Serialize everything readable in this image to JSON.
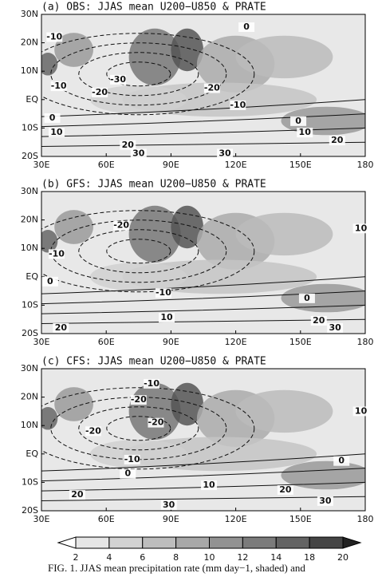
{
  "chart_data": [
    {
      "type": "contour",
      "title": "(a) OBS: JJAS mean U200−U850 & PRATE",
      "xlim": [
        30,
        180
      ],
      "ylim": [
        -20,
        30
      ],
      "xticks": [
        {
          "value": 30,
          "label": "30E"
        },
        {
          "value": 60,
          "label": "60E"
        },
        {
          "value": 90,
          "label": "90E"
        },
        {
          "value": 120,
          "label": "120E"
        },
        {
          "value": 150,
          "label": "150E"
        },
        {
          "value": 180,
          "label": "180"
        }
      ],
      "yticks": [
        {
          "value": -20,
          "label": "20S"
        },
        {
          "value": -10,
          "label": "10S"
        },
        {
          "value": 0,
          "label": "EQ"
        },
        {
          "value": 10,
          "label": "10N"
        },
        {
          "value": 20,
          "label": "20N"
        },
        {
          "value": 30,
          "label": "30N"
        }
      ],
      "contour_labels": [
        {
          "lon": 125,
          "lat": 25.5,
          "value": 0
        },
        {
          "lon": 36,
          "lat": 22,
          "value": -10
        },
        {
          "lon": 65.5,
          "lat": 7,
          "value": -30
        },
        {
          "lon": 57,
          "lat": 2.5,
          "value": -20
        },
        {
          "lon": 38,
          "lat": 4.7,
          "value": -10
        },
        {
          "lon": 109,
          "lat": 4,
          "value": -20
        },
        {
          "lon": 121,
          "lat": -2,
          "value": -10
        },
        {
          "lon": 35,
          "lat": -6.5,
          "value": 0
        },
        {
          "lon": 149,
          "lat": -7.6,
          "value": 0
        },
        {
          "lon": 37,
          "lat": -11.6,
          "value": 10
        },
        {
          "lon": 152,
          "lat": -11.6,
          "value": 10
        },
        {
          "lon": 70,
          "lat": -16,
          "value": 20
        },
        {
          "lon": 167,
          "lat": -14.4,
          "value": 20
        },
        {
          "lon": 75,
          "lat": -19,
          "value": 30
        },
        {
          "lon": 115,
          "lat": -19,
          "value": 30
        }
      ]
    },
    {
      "type": "contour",
      "title": "(b) GFS: JJAS mean U200−U850 & PRATE",
      "xlim": [
        30,
        180
      ],
      "ylim": [
        -20,
        30
      ],
      "xticks": [
        {
          "value": 30,
          "label": "30E"
        },
        {
          "value": 60,
          "label": "60E"
        },
        {
          "value": 90,
          "label": "90E"
        },
        {
          "value": 120,
          "label": "120E"
        },
        {
          "value": 150,
          "label": "150E"
        },
        {
          "value": 180,
          "label": "180"
        }
      ],
      "yticks": [
        {
          "value": -20,
          "label": "20S"
        },
        {
          "value": -10,
          "label": "10S"
        },
        {
          "value": 0,
          "label": "EQ"
        },
        {
          "value": 10,
          "label": "10N"
        },
        {
          "value": 20,
          "label": "20N"
        },
        {
          "value": 30,
          "label": "30N"
        }
      ],
      "contour_labels": [
        {
          "lon": 67,
          "lat": 18,
          "value": -20
        },
        {
          "lon": 37,
          "lat": 8,
          "value": -10
        },
        {
          "lon": 34,
          "lat": -1.7,
          "value": 0
        },
        {
          "lon": 86.5,
          "lat": -5.7,
          "value": -10
        },
        {
          "lon": 153,
          "lat": -7.6,
          "value": 0
        },
        {
          "lon": 88,
          "lat": -14.4,
          "value": 10
        },
        {
          "lon": 158.5,
          "lat": -15.5,
          "value": 20
        },
        {
          "lon": 39,
          "lat": -18,
          "value": 20
        },
        {
          "lon": 166,
          "lat": -18,
          "value": 30
        },
        {
          "lon": 178,
          "lat": 17,
          "value": 10
        }
      ]
    },
    {
      "type": "contour",
      "title": "(c) CFS: JJAS mean U200−U850 & PRATE",
      "xlim": [
        30,
        180
      ],
      "ylim": [
        -20,
        30
      ],
      "xticks": [
        {
          "value": 30,
          "label": "30E"
        },
        {
          "value": 60,
          "label": "60E"
        },
        {
          "value": 90,
          "label": "90E"
        },
        {
          "value": 120,
          "label": "120E"
        },
        {
          "value": 150,
          "label": "150E"
        },
        {
          "value": 180,
          "label": "180"
        }
      ],
      "yticks": [
        {
          "value": -20,
          "label": "20S"
        },
        {
          "value": -10,
          "label": "10S"
        },
        {
          "value": 0,
          "label": "EQ"
        },
        {
          "value": 10,
          "label": "10N"
        },
        {
          "value": 20,
          "label": "20N"
        },
        {
          "value": 30,
          "label": "30N"
        }
      ],
      "contour_labels": [
        {
          "lon": 81,
          "lat": 24.7,
          "value": -10
        },
        {
          "lon": 75,
          "lat": 19,
          "value": -20
        },
        {
          "lon": 83,
          "lat": 11,
          "value": -20
        },
        {
          "lon": 54,
          "lat": 8,
          "value": -20
        },
        {
          "lon": 72,
          "lat": -2,
          "value": -10
        },
        {
          "lon": 70,
          "lat": -7,
          "value": 0
        },
        {
          "lon": 169,
          "lat": -2.5,
          "value": 0
        },
        {
          "lon": 107.6,
          "lat": -11,
          "value": 10
        },
        {
          "lon": 46.6,
          "lat": -14.4,
          "value": 20
        },
        {
          "lon": 143,
          "lat": -12.7,
          "value": 20
        },
        {
          "lon": 161.5,
          "lat": -16.6,
          "value": 30
        },
        {
          "lon": 89,
          "lat": -18,
          "value": 30
        },
        {
          "lon": 178,
          "lat": 15,
          "value": 10
        }
      ]
    }
  ],
  "colorbar": {
    "levels": [
      2,
      4,
      6,
      8,
      10,
      12,
      14,
      18,
      20
    ],
    "colors": [
      "#ffffff",
      "#e6e6e6",
      "#d2d2d2",
      "#bdbdbd",
      "#a8a8a8",
      "#929292",
      "#7b7b7b",
      "#636363",
      "#454545",
      "#222222"
    ]
  },
  "caption": "FIG. 1. JJAS mean precipitation rate (mm day−1, shaded) and"
}
